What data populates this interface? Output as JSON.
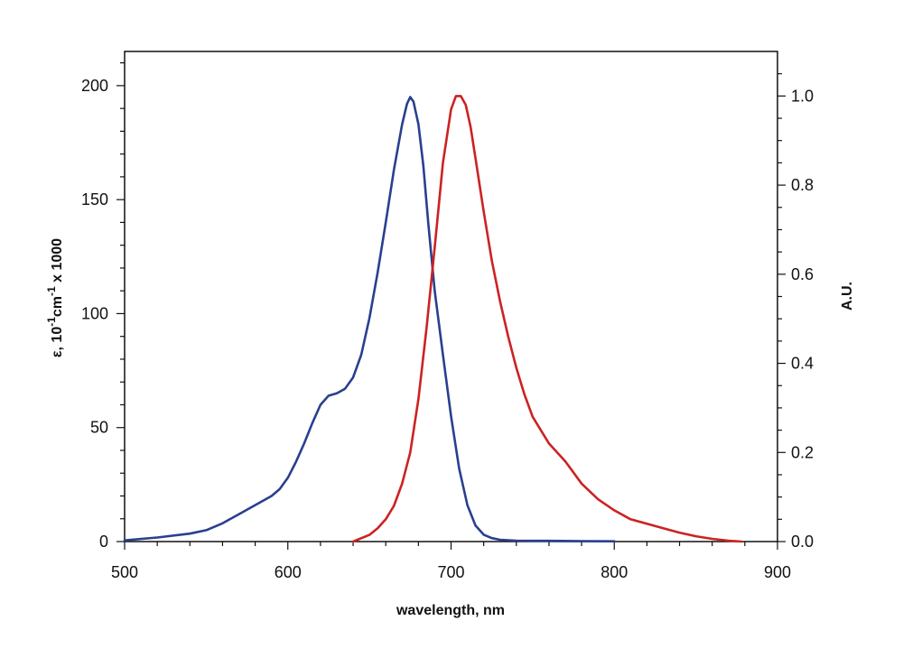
{
  "chart_data": {
    "type": "line",
    "xlabel": "wavelength, nm",
    "ylabel_left": {
      "base": "ε, 10",
      "sup1": "-1",
      "mid": "cm",
      "sup2": "-1",
      "tail": " x 1000"
    },
    "ylabel_right": "A.U.",
    "xlim": [
      500,
      900
    ],
    "ylim_left": [
      0,
      215
    ],
    "ylim_right": [
      0,
      1.1
    ],
    "x_ticks": [
      500,
      600,
      700,
      800,
      900
    ],
    "x_tick_labels": [
      "500",
      "600",
      "700",
      "800",
      "900"
    ],
    "y_left_ticks": [
      0,
      50,
      100,
      150,
      200
    ],
    "y_left_tick_labels": [
      "0",
      "50",
      "100",
      "150",
      "200"
    ],
    "y_right_ticks": [
      0,
      0.2,
      0.4,
      0.6,
      0.8,
      1.0
    ],
    "y_right_tick_labels": [
      "0.0",
      "0.2",
      "0.4",
      "0.6",
      "0.8",
      "1.0"
    ],
    "grid": false,
    "legend": "none",
    "series": [
      {
        "axis": "left",
        "color": "#2a3f8f",
        "x": [
          500,
          520,
          540,
          550,
          560,
          570,
          580,
          590,
          595,
          600,
          605,
          610,
          615,
          620,
          625,
          630,
          635,
          640,
          645,
          650,
          655,
          660,
          665,
          670,
          673,
          675,
          677,
          680,
          683,
          686,
          690,
          695,
          700,
          705,
          710,
          715,
          720,
          725,
          730,
          740,
          750,
          760,
          780,
          800
        ],
        "y": [
          0.5,
          1.8,
          3.5,
          5,
          8,
          12,
          16,
          20,
          23,
          28,
          35,
          43,
          52,
          60,
          64,
          65,
          67,
          72,
          82,
          98,
          118,
          140,
          163,
          183,
          192,
          195,
          193,
          183,
          165,
          140,
          110,
          82,
          55,
          32,
          16,
          7,
          3,
          1.5,
          0.8,
          0.4,
          0.3,
          0.3,
          0.2,
          0.1
        ]
      },
      {
        "axis": "right",
        "color": "#cc2222",
        "x": [
          640,
          650,
          655,
          660,
          665,
          670,
          675,
          680,
          685,
          690,
          695,
          700,
          703,
          706,
          709,
          712,
          715,
          720,
          725,
          730,
          735,
          740,
          745,
          750,
          755,
          760,
          765,
          770,
          775,
          780,
          790,
          800,
          810,
          820,
          830,
          840,
          850,
          860,
          870,
          878
        ],
        "y": [
          0,
          0.015,
          0.03,
          0.05,
          0.08,
          0.13,
          0.2,
          0.32,
          0.48,
          0.66,
          0.85,
          0.97,
          1.0,
          1.0,
          0.98,
          0.93,
          0.86,
          0.74,
          0.63,
          0.54,
          0.46,
          0.39,
          0.33,
          0.28,
          0.25,
          0.22,
          0.2,
          0.18,
          0.155,
          0.13,
          0.095,
          0.07,
          0.05,
          0.04,
          0.03,
          0.02,
          0.012,
          0.006,
          0.002,
          0
        ]
      }
    ]
  }
}
